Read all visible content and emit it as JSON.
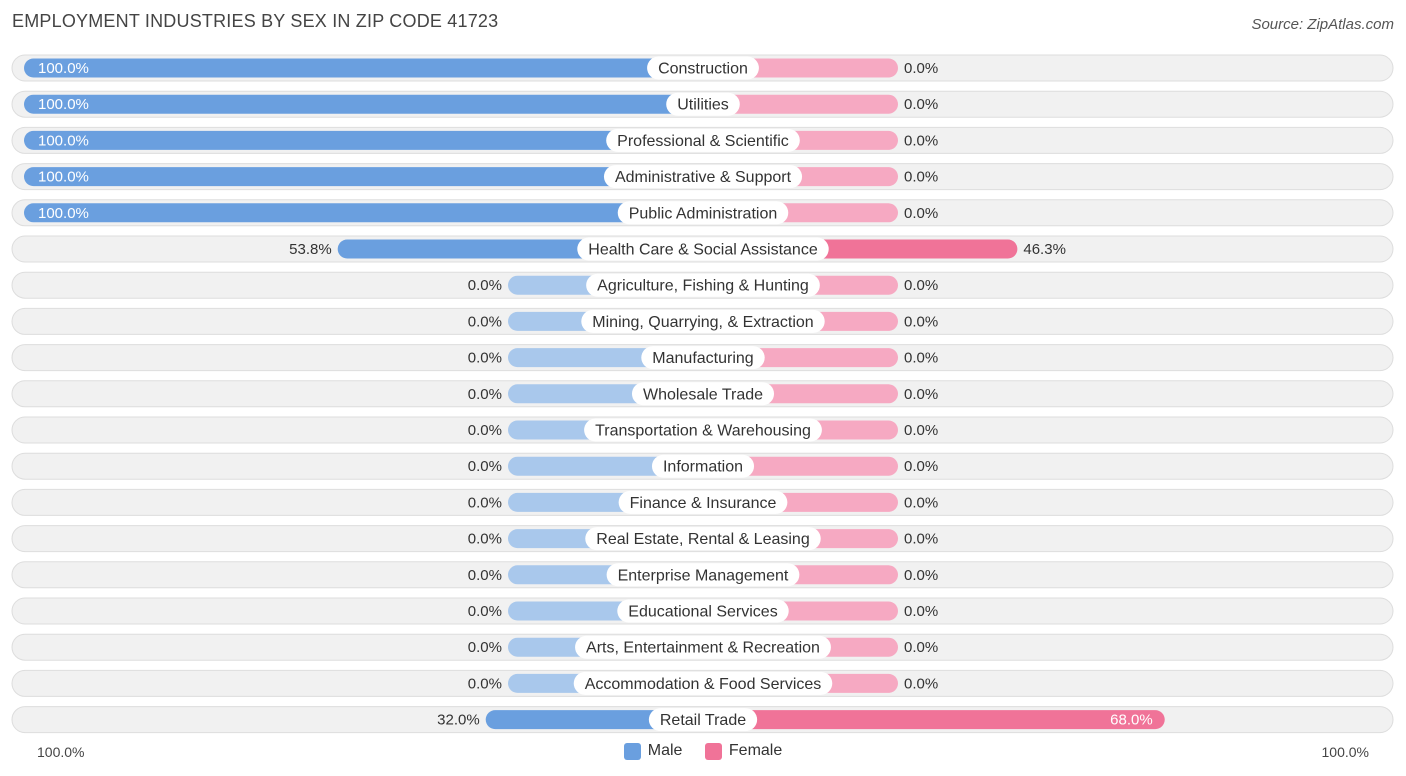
{
  "header": {
    "title": "EMPLOYMENT INDUSTRIES BY SEX IN ZIP CODE 41723",
    "source": "Source: ZipAtlas.com"
  },
  "colors": {
    "male": "#6a9fdf",
    "male_light": "#a9c8ec",
    "female": "#f07398",
    "female_light": "#f6a9c2",
    "row_bg": "#f1f1f1",
    "row_border": "#dddddd"
  },
  "legend": {
    "male": "Male",
    "female": "Female"
  },
  "axis": {
    "left_label": "100.0%",
    "right_label": "100.0%"
  },
  "chart_data": {
    "type": "bar",
    "orientation": "horizontal-diverging",
    "title": "EMPLOYMENT INDUSTRIES BY SEX IN ZIP CODE 41723",
    "xlim": [
      -100,
      100
    ],
    "categories": [
      "Construction",
      "Utilities",
      "Professional & Scientific",
      "Administrative & Support",
      "Public Administration",
      "Health Care & Social Assistance",
      "Agriculture, Fishing & Hunting",
      "Mining, Quarrying, & Extraction",
      "Manufacturing",
      "Wholesale Trade",
      "Transportation & Warehousing",
      "Information",
      "Finance & Insurance",
      "Real Estate, Rental & Leasing",
      "Enterprise Management",
      "Educational Services",
      "Arts, Entertainment & Recreation",
      "Accommodation & Food Services",
      "Retail Trade"
    ],
    "series": [
      {
        "name": "Male",
        "values": [
          100.0,
          100.0,
          100.0,
          100.0,
          100.0,
          53.8,
          0,
          0,
          0,
          0,
          0,
          0,
          0,
          0,
          0,
          0,
          0,
          0,
          32.0
        ],
        "labels": [
          "100.0%",
          "100.0%",
          "100.0%",
          "100.0%",
          "100.0%",
          "53.8%",
          "0.0%",
          "0.0%",
          "0.0%",
          "0.0%",
          "0.0%",
          "0.0%",
          "0.0%",
          "0.0%",
          "0.0%",
          "0.0%",
          "0.0%",
          "0.0%",
          "32.0%"
        ]
      },
      {
        "name": "Female",
        "values": [
          0,
          0,
          0,
          0,
          0,
          46.3,
          0,
          0,
          0,
          0,
          0,
          0,
          0,
          0,
          0,
          0,
          0,
          0,
          68.0
        ],
        "labels": [
          "0.0%",
          "0.0%",
          "0.0%",
          "0.0%",
          "0.0%",
          "46.3%",
          "0.0%",
          "0.0%",
          "0.0%",
          "0.0%",
          "0.0%",
          "0.0%",
          "0.0%",
          "0.0%",
          "0.0%",
          "0.0%",
          "0.0%",
          "0.0%",
          "68.0%"
        ]
      }
    ],
    "legend_position": "bottom-center"
  }
}
